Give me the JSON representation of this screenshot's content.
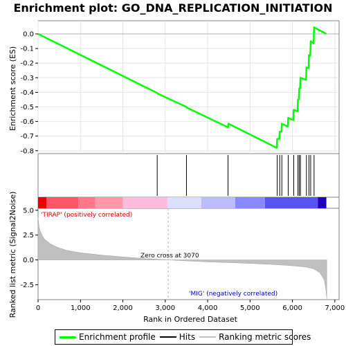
{
  "title": "Enrichment plot: GO_DNA_REPLICATION_INITIATION",
  "colors": {
    "enrichment_line": "#00ff00",
    "hits": "#000000",
    "ranking_fill": "#c0c0c0",
    "positive_text": "#cc0000",
    "negative_text": "#0000aa",
    "zero_line": "#b0b0b0"
  },
  "chart_data": {
    "type": "line",
    "panels": [
      "enrichment",
      "hits",
      "ranking"
    ],
    "x_axis": {
      "label": "Rank in Ordered Dataset",
      "range": [
        0,
        7100
      ],
      "ticks": [
        0,
        1000,
        2000,
        3000,
        4000,
        5000,
        6000,
        7000
      ],
      "tick_labels": [
        "0",
        "1,000",
        "2,000",
        "3,000",
        "4,000",
        "5,000",
        "6,000",
        "7,000"
      ]
    },
    "enrichment": {
      "ylabel": "Enrichment score (ES)",
      "ylim": [
        -0.82,
        0.09
      ],
      "yticks": [
        0.0,
        -0.1,
        -0.2,
        -0.3,
        -0.4,
        -0.5,
        -0.6,
        -0.7,
        -0.8
      ],
      "ytick_labels": [
        "0.0",
        "-0.1",
        "-0.2",
        "-0.3",
        "-0.4",
        "-0.5",
        "-0.6",
        "-0.7",
        "-0.8"
      ],
      "points": [
        [
          0,
          0.0
        ],
        [
          2810,
          -0.405
        ],
        [
          2830,
          -0.41
        ],
        [
          3500,
          -0.5
        ],
        [
          3510,
          -0.505
        ],
        [
          4480,
          -0.64
        ],
        [
          4490,
          -0.615
        ],
        [
          5630,
          -0.78
        ],
        [
          5640,
          -0.72
        ],
        [
          5690,
          -0.72
        ],
        [
          5700,
          -0.67
        ],
        [
          5740,
          -0.67
        ],
        [
          5750,
          -0.615
        ],
        [
          5890,
          -0.635
        ],
        [
          5900,
          -0.575
        ],
        [
          6020,
          -0.59
        ],
        [
          6030,
          -0.52
        ],
        [
          6120,
          -0.53
        ],
        [
          6130,
          -0.45
        ],
        [
          6150,
          -0.45
        ],
        [
          6160,
          -0.375
        ],
        [
          6180,
          -0.375
        ],
        [
          6190,
          -0.3
        ],
        [
          6320,
          -0.315
        ],
        [
          6330,
          -0.23
        ],
        [
          6380,
          -0.235
        ],
        [
          6390,
          -0.145
        ],
        [
          6420,
          -0.15
        ],
        [
          6430,
          -0.05
        ],
        [
          6500,
          -0.065
        ],
        [
          6510,
          0.045
        ],
        [
          6800,
          0.0
        ]
      ]
    },
    "hits": [
      2810,
      3500,
      4480,
      5640,
      5700,
      5750,
      5900,
      6030,
      6130,
      6160,
      6190,
      6330,
      6390,
      6430,
      6510
    ],
    "ranking": {
      "ylabel": "Ranked list metric (Signal2Noise)",
      "ylim": [
        -4,
        5.2
      ],
      "yticks": [
        5.0,
        2.5,
        0.0,
        -2.5
      ],
      "ytick_labels": [
        "5.0",
        "2.5",
        "0.0",
        "-2.5"
      ],
      "curve": [
        [
          0,
          4.3
        ],
        [
          25,
          3.3
        ],
        [
          50,
          2.9
        ],
        [
          100,
          2.45
        ],
        [
          150,
          2.1
        ],
        [
          200,
          1.9
        ],
        [
          300,
          1.6
        ],
        [
          400,
          1.38
        ],
        [
          500,
          1.2
        ],
        [
          700,
          0.95
        ],
        [
          1000,
          0.72
        ],
        [
          1500,
          0.48
        ],
        [
          2000,
          0.3
        ],
        [
          2500,
          0.15
        ],
        [
          3070,
          0.0
        ],
        [
          3500,
          -0.1
        ],
        [
          4000,
          -0.2
        ],
        [
          4500,
          -0.27
        ],
        [
          5000,
          -0.35
        ],
        [
          5500,
          -0.45
        ],
        [
          6000,
          -0.58
        ],
        [
          6300,
          -0.7
        ],
        [
          6500,
          -0.9
        ],
        [
          6650,
          -1.3
        ],
        [
          6750,
          -2.0
        ],
        [
          6790,
          -3.0
        ],
        [
          6810,
          -3.9
        ]
      ],
      "zero_cross_label": "Zero cross at 3070",
      "zero_cross": 3070,
      "positive_label": "'TIRAP' (positively correlated)",
      "negative_label": "'MIG' (negatively correlated)"
    },
    "color_bar": {
      "segments": [
        {
          "start": 0,
          "end": 200,
          "color": "#ee0000"
        },
        {
          "start": 200,
          "end": 950,
          "color": "#ff5566"
        },
        {
          "start": 950,
          "end": 1350,
          "color": "#ff7788"
        },
        {
          "start": 1350,
          "end": 2000,
          "color": "#ff99aa"
        },
        {
          "start": 2000,
          "end": 3050,
          "color": "#ffbbdd"
        },
        {
          "start": 3050,
          "end": 3850,
          "color": "#ddddff"
        },
        {
          "start": 3850,
          "end": 4650,
          "color": "#bbbbff"
        },
        {
          "start": 4650,
          "end": 5350,
          "color": "#8888ff"
        },
        {
          "start": 5350,
          "end": 6600,
          "color": "#5555ee"
        },
        {
          "start": 6600,
          "end": 6800,
          "color": "#2200bb"
        }
      ]
    },
    "legend": [
      "Enrichment profile",
      "Hits",
      "Ranking metric scores"
    ]
  }
}
